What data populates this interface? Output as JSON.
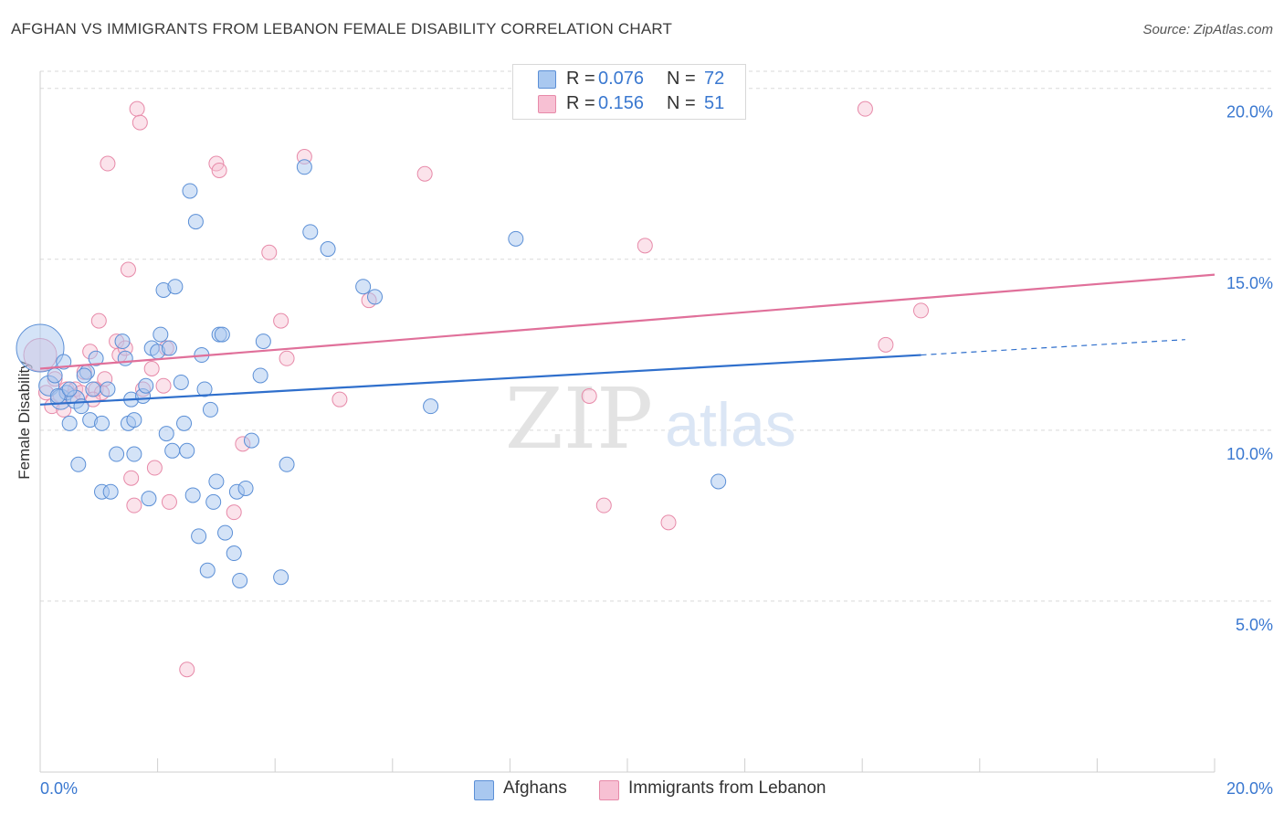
{
  "title": "AFGHAN VS IMMIGRANTS FROM LEBANON FEMALE DISABILITY CORRELATION CHART",
  "source": "Source: ZipAtlas.com",
  "watermark": {
    "zip": "ZIP",
    "atlas": "atlas"
  },
  "colors": {
    "blue_fill": "#a9c8f0",
    "blue_stroke": "#5b8fd6",
    "blue_line": "#2f6fcc",
    "pink_fill": "#f7c0d3",
    "pink_stroke": "#e78aa9",
    "pink_line": "#e0709a",
    "tick_color": "#3a78d0",
    "grid": "#d9d9d9"
  },
  "legend_top": [
    {
      "r_label": "R =",
      "r_value": "0.076",
      "n_label": "N =",
      "n_value": "72"
    },
    {
      "r_label": "R =",
      "r_value": "0.156",
      "n_label": "N =",
      "n_value": "51"
    }
  ],
  "legend_bottom": [
    "Afghans",
    "Immigrants from Lebanon"
  ],
  "chart_data": {
    "type": "scatter",
    "title": "AFGHAN VS IMMIGRANTS FROM LEBANON FEMALE DISABILITY CORRELATION CHART",
    "xlabel": "",
    "ylabel": "Female Disability",
    "xlim": [
      0,
      20
    ],
    "ylim": [
      0,
      20.5
    ],
    "x_tick_labels": [
      "0.0%",
      "20.0%"
    ],
    "y_ticks": [
      5,
      10,
      15,
      20
    ],
    "y_tick_labels": [
      "5.0%",
      "10.0%",
      "15.0%",
      "20.0%"
    ],
    "grid": true,
    "series": [
      {
        "name": "Afghans",
        "r": 0.076,
        "n": 72,
        "trend": {
          "x0": 0,
          "y0": 10.75,
          "x1": 15,
          "y1": 12.2,
          "dash_to_x": 19.5,
          "dash_to_y": 12.65
        },
        "points": [
          [
            0.0,
            12.4,
            26
          ],
          [
            0.15,
            11.3,
            11
          ],
          [
            0.25,
            11.6,
            9
          ],
          [
            0.4,
            12.0,
            9
          ],
          [
            0.35,
            10.9,
            11
          ],
          [
            0.45,
            11.1,
            9
          ],
          [
            0.5,
            10.2,
            9
          ],
          [
            0.6,
            10.9,
            10
          ],
          [
            0.7,
            10.7,
            9
          ],
          [
            0.8,
            11.7,
            9
          ],
          [
            0.85,
            10.3,
            9
          ],
          [
            0.9,
            11.2,
            9
          ],
          [
            0.95,
            12.1,
            9
          ],
          [
            1.05,
            10.2,
            9
          ],
          [
            1.15,
            11.2,
            9
          ],
          [
            0.65,
            9.0,
            9
          ],
          [
            1.05,
            8.2,
            9
          ],
          [
            1.2,
            8.2,
            9
          ],
          [
            1.3,
            9.3,
            9
          ],
          [
            1.4,
            12.6,
            9
          ],
          [
            1.5,
            10.2,
            9
          ],
          [
            1.45,
            12.1,
            9
          ],
          [
            1.55,
            10.9,
            9
          ],
          [
            1.6,
            9.3,
            9
          ],
          [
            1.6,
            10.3,
            9
          ],
          [
            1.75,
            11.0,
            9
          ],
          [
            1.8,
            11.3,
            9
          ],
          [
            1.85,
            8.0,
            9
          ],
          [
            1.9,
            12.4,
            9
          ],
          [
            2.0,
            12.3,
            9
          ],
          [
            2.05,
            12.8,
            9
          ],
          [
            2.1,
            14.1,
            9
          ],
          [
            2.15,
            9.9,
            9
          ],
          [
            2.2,
            12.4,
            9
          ],
          [
            2.25,
            9.4,
            9
          ],
          [
            2.3,
            14.2,
            9
          ],
          [
            2.4,
            11.4,
            9
          ],
          [
            2.45,
            10.2,
            9
          ],
          [
            2.5,
            9.4,
            9
          ],
          [
            2.55,
            17.0,
            9
          ],
          [
            2.6,
            8.1,
            9
          ],
          [
            2.65,
            16.1,
            9
          ],
          [
            2.7,
            6.9,
            9
          ],
          [
            2.75,
            12.2,
            9
          ],
          [
            2.8,
            11.2,
            9
          ],
          [
            2.85,
            5.9,
            9
          ],
          [
            2.9,
            10.6,
            9
          ],
          [
            2.95,
            7.9,
            9
          ],
          [
            3.0,
            8.5,
            9
          ],
          [
            3.05,
            12.8,
            9
          ],
          [
            3.1,
            12.8,
            9
          ],
          [
            3.15,
            7.0,
            9
          ],
          [
            3.3,
            6.4,
            9
          ],
          [
            3.35,
            8.2,
            9
          ],
          [
            3.4,
            5.6,
            9
          ],
          [
            3.5,
            8.3,
            9
          ],
          [
            3.6,
            9.7,
            9
          ],
          [
            3.75,
            11.6,
            9
          ],
          [
            3.8,
            12.6,
            9
          ],
          [
            4.1,
            5.7,
            9
          ],
          [
            4.2,
            9.0,
            9
          ],
          [
            4.5,
            17.7,
            9
          ],
          [
            4.6,
            15.8,
            9
          ],
          [
            4.9,
            15.3,
            9
          ],
          [
            5.5,
            14.2,
            9
          ],
          [
            5.7,
            13.9,
            9
          ],
          [
            6.65,
            10.7,
            9
          ],
          [
            8.1,
            15.6,
            9
          ],
          [
            11.55,
            8.5,
            9
          ],
          [
            0.3,
            11.0,
            9
          ],
          [
            0.5,
            11.2,
            9
          ],
          [
            0.75,
            11.6,
            9
          ]
        ]
      },
      {
        "name": "Immigrants from Lebanon",
        "r": 0.156,
        "n": 51,
        "trend": {
          "x0": 0,
          "y0": 11.8,
          "x1": 20,
          "y1": 14.55
        },
        "points": [
          [
            0.0,
            12.2,
            18
          ],
          [
            0.1,
            11.1,
            9
          ],
          [
            0.2,
            10.7,
            9
          ],
          [
            0.35,
            11.0,
            9
          ],
          [
            0.4,
            10.6,
            9
          ],
          [
            0.45,
            11.2,
            9
          ],
          [
            0.55,
            11.0,
            9
          ],
          [
            0.6,
            11.2,
            9
          ],
          [
            0.7,
            11.1,
            9
          ],
          [
            0.75,
            11.7,
            9
          ],
          [
            0.85,
            12.3,
            9
          ],
          [
            0.95,
            11.2,
            9
          ],
          [
            1.0,
            13.2,
            9
          ],
          [
            1.05,
            11.1,
            9
          ],
          [
            1.1,
            11.5,
            9
          ],
          [
            1.15,
            17.8,
            9
          ],
          [
            1.3,
            12.6,
            9
          ],
          [
            1.35,
            12.2,
            9
          ],
          [
            1.45,
            12.4,
            9
          ],
          [
            1.5,
            14.7,
            9
          ],
          [
            1.55,
            8.6,
            9
          ],
          [
            1.6,
            7.8,
            9
          ],
          [
            1.65,
            19.4,
            9
          ],
          [
            1.7,
            19.0,
            9
          ],
          [
            1.75,
            11.2,
            9
          ],
          [
            1.9,
            11.8,
            9
          ],
          [
            1.95,
            8.9,
            9
          ],
          [
            2.1,
            11.3,
            9
          ],
          [
            2.15,
            12.4,
            9
          ],
          [
            2.2,
            7.9,
            9
          ],
          [
            2.5,
            3.0,
            9
          ],
          [
            3.0,
            17.8,
            9
          ],
          [
            3.05,
            17.6,
            9
          ],
          [
            3.3,
            7.6,
            9
          ],
          [
            3.45,
            9.6,
            9
          ],
          [
            3.9,
            15.2,
            9
          ],
          [
            4.1,
            13.2,
            9
          ],
          [
            4.2,
            12.1,
            9
          ],
          [
            4.5,
            18.0,
            9
          ],
          [
            5.1,
            10.9,
            9
          ],
          [
            5.6,
            13.8,
            9
          ],
          [
            6.55,
            17.5,
            9
          ],
          [
            9.35,
            11.0,
            9
          ],
          [
            9.6,
            7.8,
            9
          ],
          [
            10.3,
            15.4,
            9
          ],
          [
            10.7,
            7.3,
            9
          ],
          [
            14.05,
            19.4,
            9
          ],
          [
            14.4,
            12.5,
            9
          ],
          [
            15.0,
            13.5,
            9
          ],
          [
            0.25,
            11.5,
            9
          ],
          [
            0.9,
            10.9,
            9
          ]
        ]
      }
    ]
  }
}
